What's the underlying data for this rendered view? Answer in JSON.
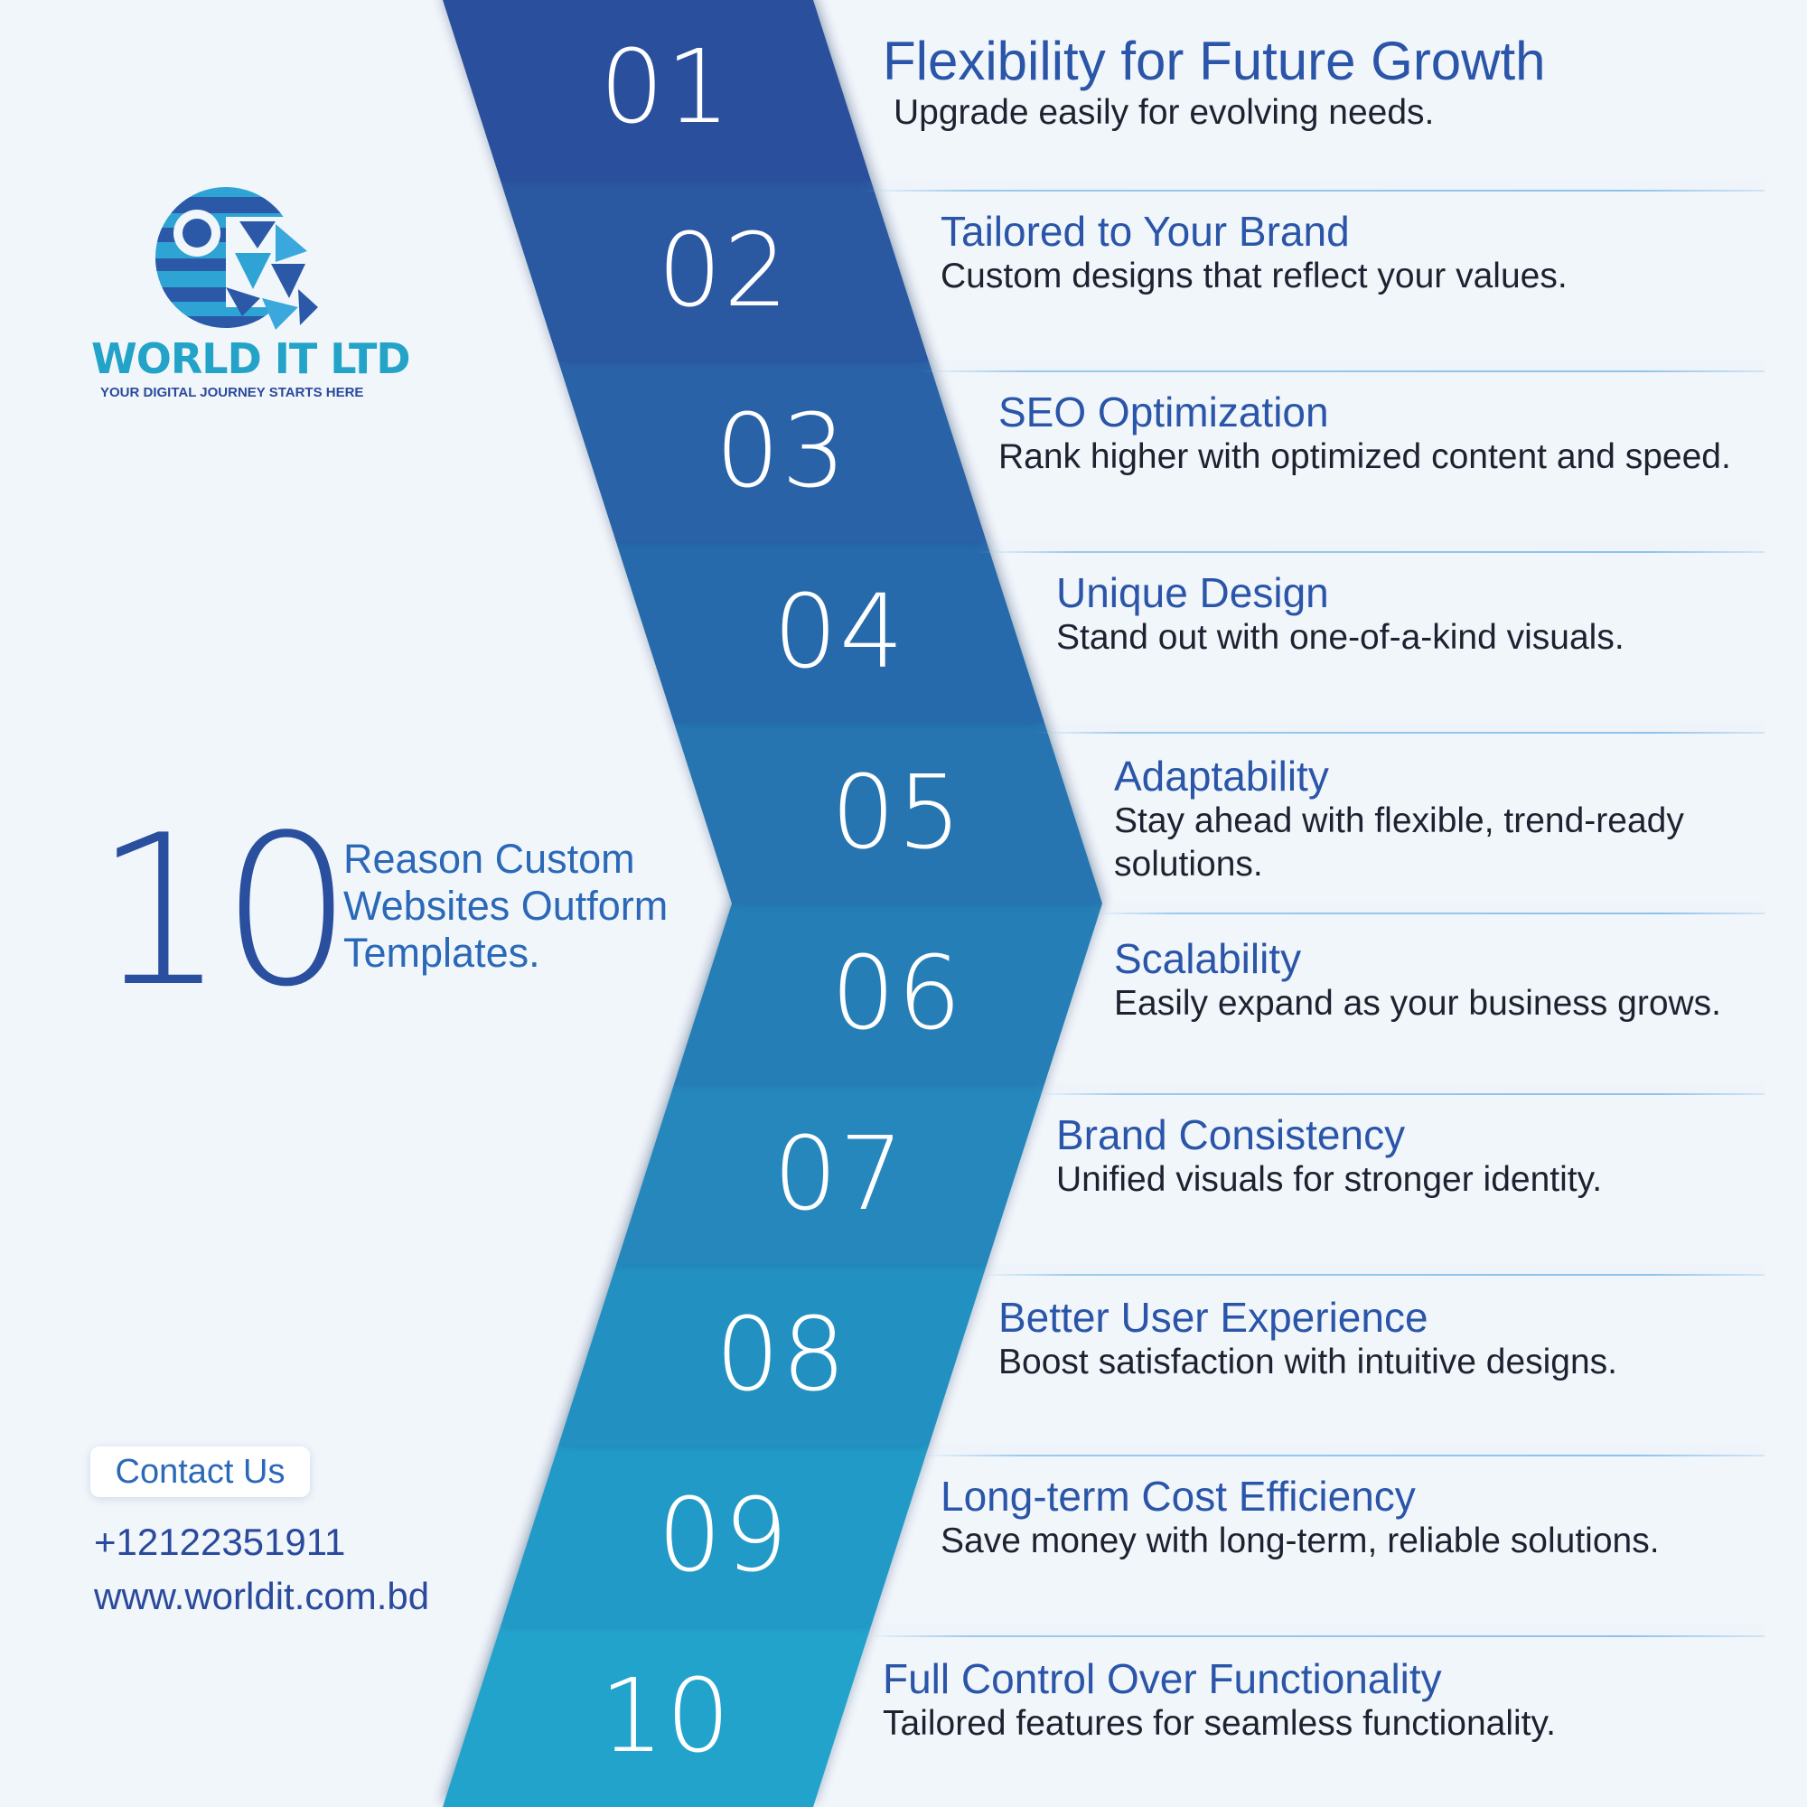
{
  "brand": {
    "name": "WORLD IT LTD",
    "tagline": "YOUR DIGITAL JOURNEY STARTS HERE"
  },
  "headline": {
    "number": "10",
    "text": "Reason Custom Websites Outform Templates."
  },
  "contact": {
    "button_label": "Contact Us",
    "phone": "+12122351911",
    "website": "www.worldit.com.bd"
  },
  "colors": {
    "background": "#f1f6fb",
    "title_blue": "#2a55a8",
    "brand_cyan": "#22a3c7",
    "band_top": "#2b4f9c",
    "band_bottom": "#22a3cc"
  },
  "items": [
    {
      "number": "01",
      "title": "Flexibility for Future Growth",
      "desc": "Upgrade easily for evolving needs."
    },
    {
      "number": "02",
      "title": "Tailored to Your Brand",
      "desc": "Custom designs that reflect your values."
    },
    {
      "number": "03",
      "title": "SEO Optimization",
      "desc": "Rank higher with optimized content and speed."
    },
    {
      "number": "04",
      "title": "Unique Design",
      "desc": "Stand out with one-of-a-kind visuals."
    },
    {
      "number": "05",
      "title": "Adaptability",
      "desc": "Stay ahead with flexible, trend-ready solutions."
    },
    {
      "number": "06",
      "title": "Scalability",
      "desc": "Easily expand as your business grows."
    },
    {
      "number": "07",
      "title": "Brand Consistency",
      "desc": "Unified visuals for stronger identity."
    },
    {
      "number": "08",
      "title": "Better User Experience",
      "desc": "Boost satisfaction with intuitive designs."
    },
    {
      "number": "09",
      "title": "Long-term Cost Efficiency",
      "desc": "Save money with long-term, reliable solutions."
    },
    {
      "number": "10",
      "title": "Full Control Over Functionality",
      "desc": "Tailored features for seamless functionality."
    }
  ]
}
